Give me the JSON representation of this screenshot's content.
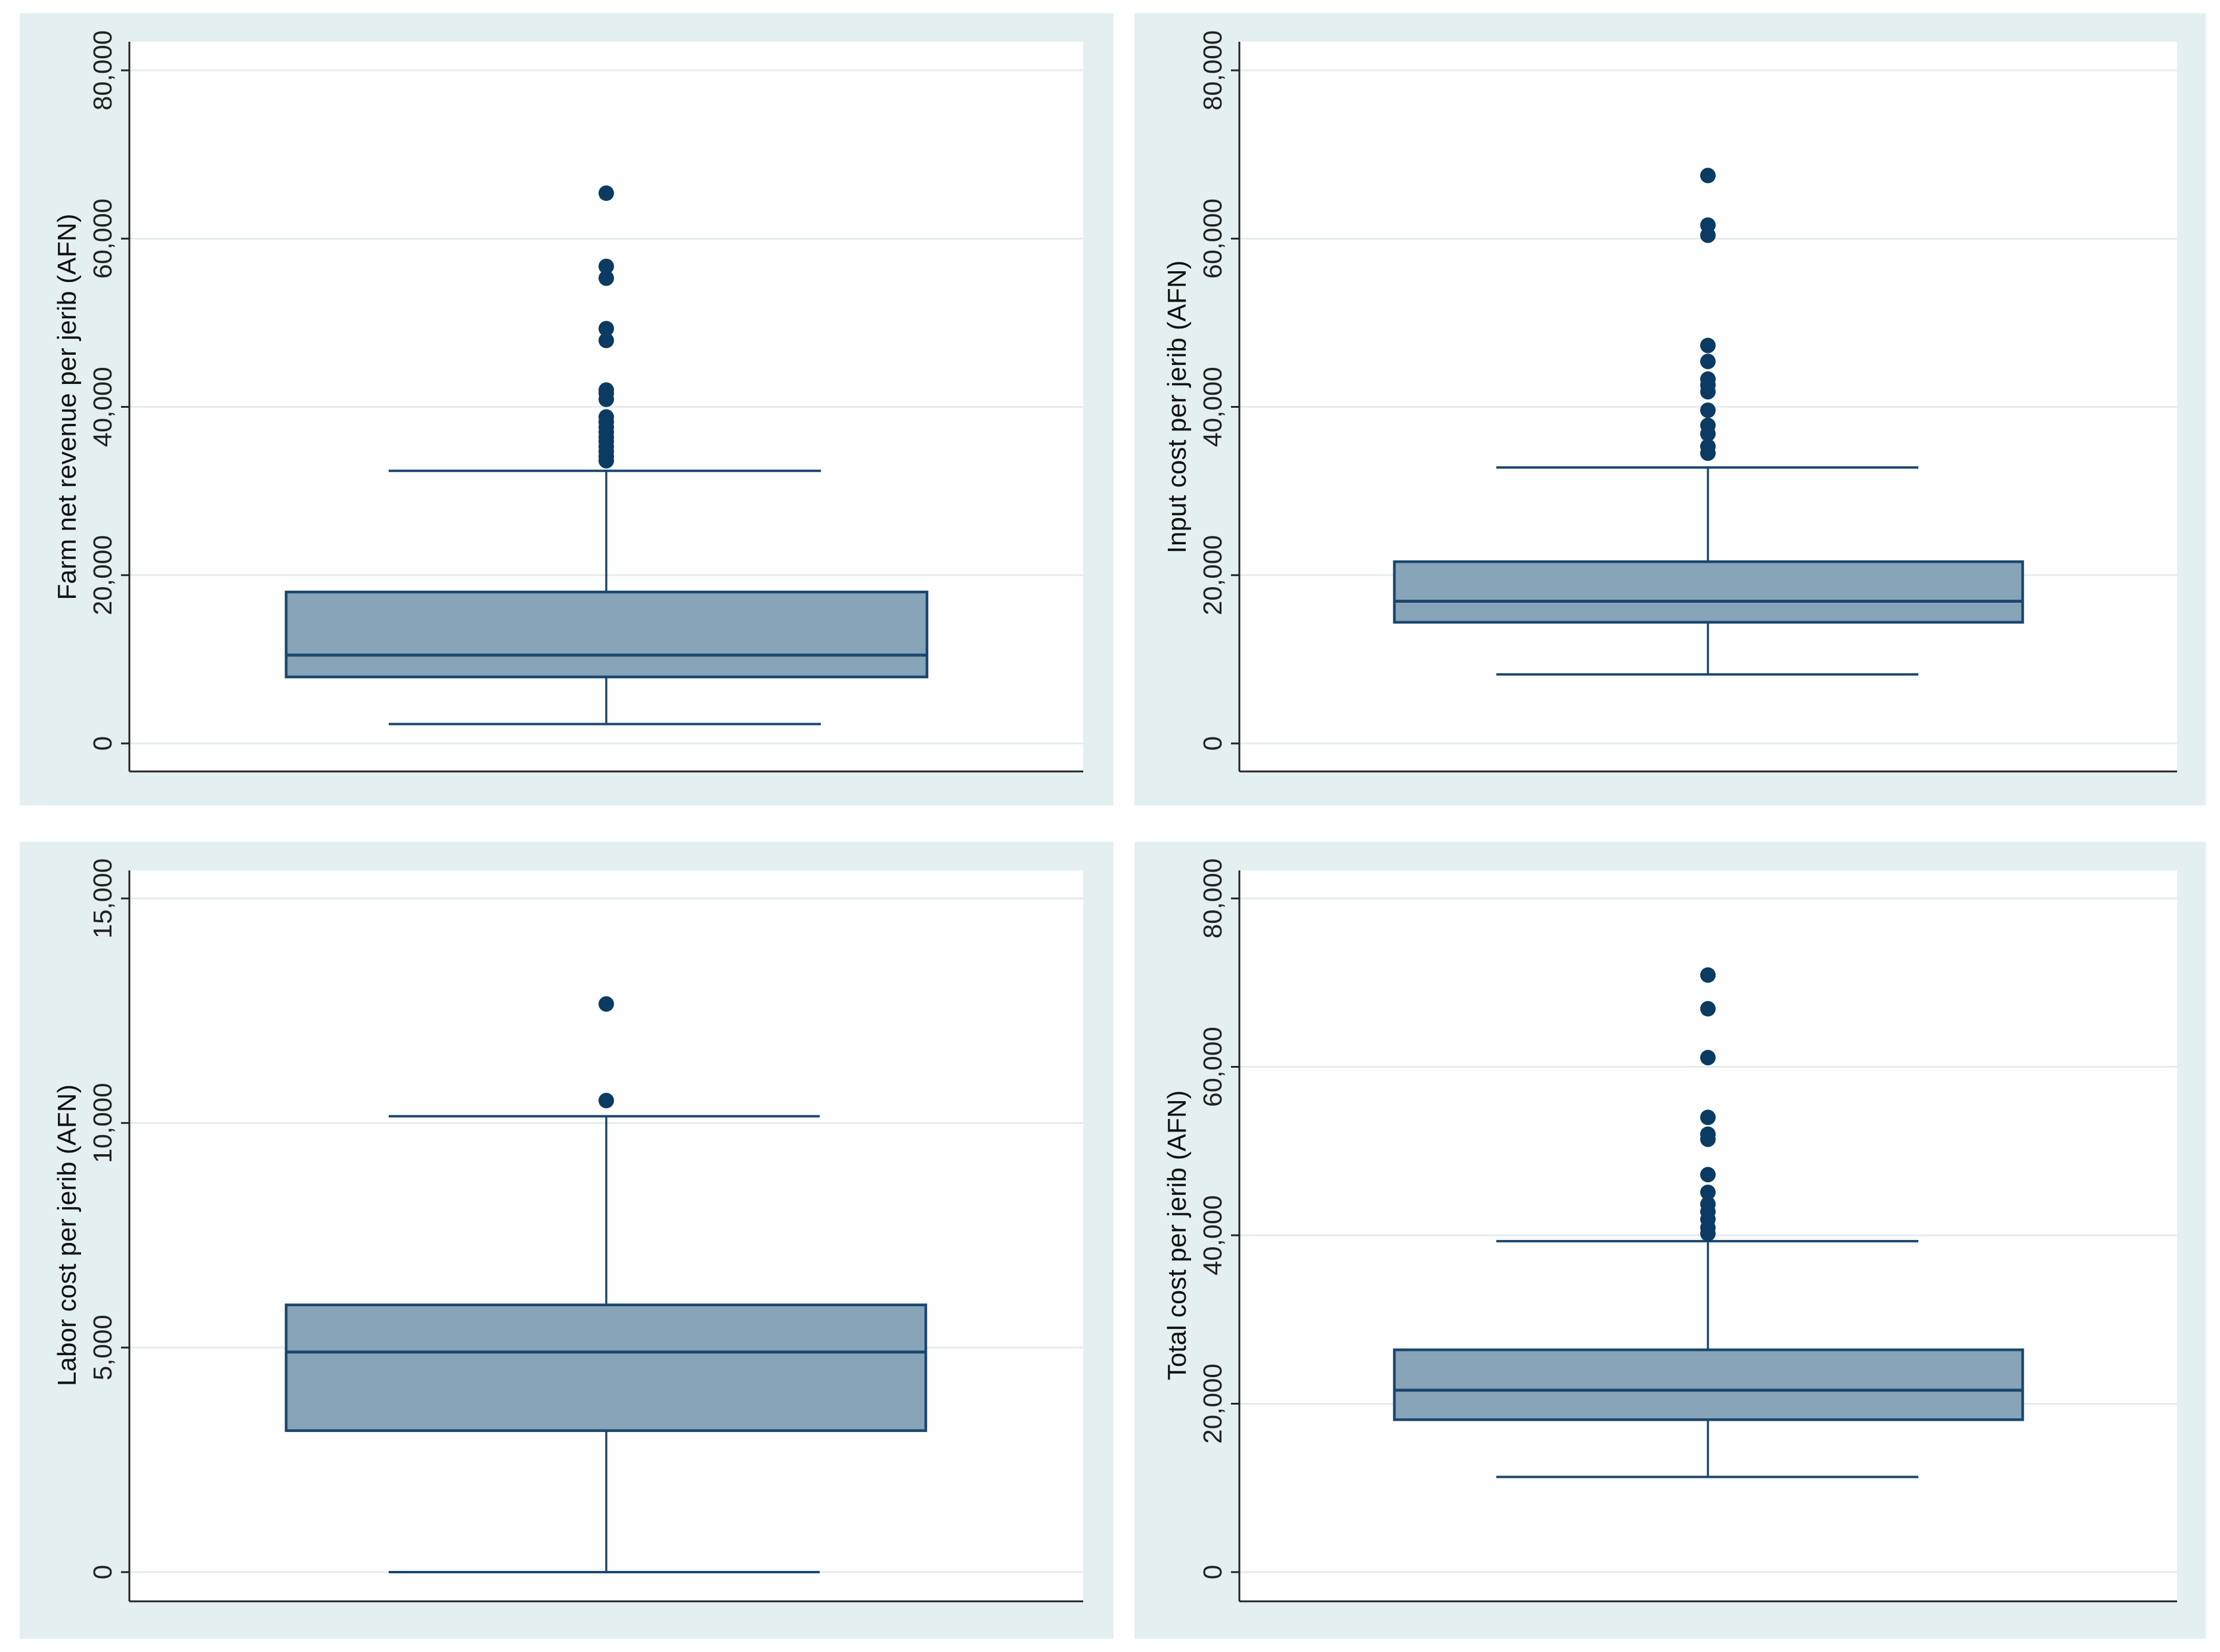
{
  "colors": {
    "panel_bg": "#e4eff1",
    "plot_bg": "#ffffff",
    "grid": "#e3ecef",
    "box_fill": "#87a4b9",
    "line": "#1a476f",
    "outlier": "#0b3b63",
    "axis": "#222222"
  },
  "chart_data": [
    {
      "type": "box",
      "id": "net-revenue",
      "ylabel": "Farm net revenue per jerib (AFN)",
      "ylim": [
        0,
        80000
      ],
      "yticks": [
        0,
        20000,
        40000,
        60000,
        80000
      ],
      "ytick_labels": [
        "0",
        "20,000",
        "40,000",
        "60,000",
        "80,000"
      ],
      "grid": true,
      "box": {
        "whisker_low": 2300,
        "q1": 7900,
        "median": 10500,
        "q3": 18000,
        "whisker_high": 32400
      },
      "outliers": [
        33600,
        34100,
        34700,
        35300,
        35900,
        36400,
        37000,
        37600,
        38200,
        38800,
        40900,
        41600,
        42000,
        47900,
        49300,
        55300,
        56700,
        65400
      ]
    },
    {
      "type": "box",
      "id": "input-cost",
      "ylabel": "Input cost per jerib (AFN)",
      "ylim": [
        0,
        80000
      ],
      "yticks": [
        0,
        20000,
        40000,
        60000,
        80000
      ],
      "ytick_labels": [
        "0",
        "20,000",
        "40,000",
        "60,000",
        "80,000"
      ],
      "grid": true,
      "box": {
        "whisker_low": 8200,
        "q1": 14400,
        "median": 16900,
        "q3": 21600,
        "whisker_high": 32800
      },
      "outliers": [
        34500,
        35300,
        36800,
        37800,
        39600,
        41800,
        42600,
        43300,
        45400,
        47300,
        60400,
        61600,
        67500
      ]
    },
    {
      "type": "box",
      "id": "labor-cost",
      "ylabel": "Labor cost per jerib (AFN)",
      "ylim": [
        0,
        15000
      ],
      "yticks": [
        0,
        5000,
        10000,
        15000
      ],
      "ytick_labels": [
        "0",
        "5,000",
        "10,000",
        "15,000"
      ],
      "grid": true,
      "box": {
        "whisker_low": 0,
        "q1": 3150,
        "median": 4900,
        "q3": 5950,
        "whisker_high": 10150
      },
      "outliers": [
        10500,
        12650
      ]
    },
    {
      "type": "box",
      "id": "total-cost",
      "ylabel": "Total cost per jerib (AFN)",
      "ylim": [
        0,
        80000
      ],
      "yticks": [
        0,
        20000,
        40000,
        60000,
        80000
      ],
      "ytick_labels": [
        "0",
        "20,000",
        "40,000",
        "60,000",
        "80,000"
      ],
      "grid": true,
      "box": {
        "whisker_low": 11300,
        "q1": 18100,
        "median": 21600,
        "q3": 26400,
        "whisker_high": 39300
      },
      "outliers": [
        40200,
        40900,
        41900,
        42800,
        43700,
        45100,
        47200,
        51400,
        52000,
        54000,
        61100,
        66900,
        70900
      ]
    }
  ]
}
